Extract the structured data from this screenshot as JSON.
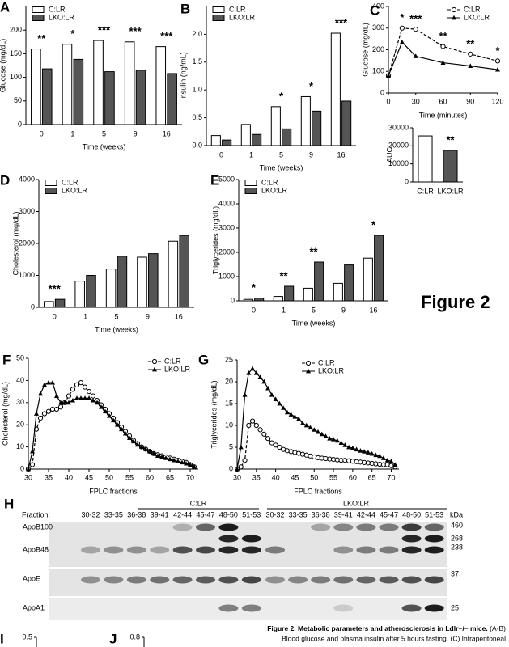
{
  "chart_data": [
    {
      "panel": "A",
      "type": "bar",
      "ylabel": "Glucose (mg/dL)",
      "xlabel": "Time (weeks)",
      "categories": [
        "0",
        "1",
        "5",
        "9",
        "16"
      ],
      "series": [
        {
          "name": "C:LR",
          "color": "#ffffff",
          "values": [
            160,
            170,
            178,
            175,
            165
          ]
        },
        {
          "name": "LKO:LR",
          "color": "#555555",
          "values": [
            118,
            138,
            112,
            115,
            108
          ]
        }
      ],
      "significance": [
        "**",
        "*",
        "***",
        "***",
        "***"
      ],
      "ylim": [
        0,
        250
      ],
      "yticks": [
        0,
        50,
        100,
        150,
        200
      ],
      "legend": "upper left"
    },
    {
      "panel": "B",
      "type": "bar",
      "ylabel": "Insulin (ng/mL)",
      "xlabel": "Time (weeks)",
      "categories": [
        "0",
        "1",
        "5",
        "9",
        "16"
      ],
      "series": [
        {
          "name": "C:LR",
          "color": "#ffffff",
          "values": [
            0.18,
            0.38,
            0.7,
            0.88,
            2.02
          ]
        },
        {
          "name": "LKO:LR",
          "color": "#555555",
          "values": [
            0.1,
            0.2,
            0.3,
            0.62,
            0.8
          ]
        }
      ],
      "significance": [
        null,
        null,
        "*",
        "*",
        "***"
      ],
      "ylim": [
        0,
        2.5
      ],
      "yticks": [
        {
          "value": 0,
          "label": "0.0"
        },
        0.5,
        {
          "value": 1,
          "label": "1.0"
        },
        1.5,
        {
          "value": 2,
          "label": "2.0"
        }
      ],
      "legend": "upper left"
    },
    {
      "panel": "C",
      "type": "line",
      "ylabel": "Glucose (mg/dL)",
      "xlabel": "Time (minutes)",
      "x": [
        0,
        15,
        30,
        60,
        90,
        120
      ],
      "series": [
        {
          "name": "C:LR",
          "color": "#000000",
          "dashed": true,
          "marker": "circle",
          "values": [
            80,
            300,
            295,
            215,
            180,
            148
          ]
        },
        {
          "name": "LKO:LR",
          "color": "#000000",
          "dashed": false,
          "marker": "triangle",
          "values": [
            80,
            235,
            170,
            140,
            125,
            108
          ]
        }
      ],
      "significance": [
        null,
        "*",
        "***",
        "**",
        "**",
        "*"
      ],
      "xlim": [
        0,
        120
      ],
      "xticks": [
        0,
        30,
        60,
        90,
        120
      ],
      "ylim": [
        0,
        400
      ],
      "yticks": [
        0,
        100,
        200,
        300,
        400
      ],
      "legend": "upper right"
    },
    {
      "type": "bar",
      "ylabel": "AUC",
      "categories": [
        "C:LR",
        "LKO:LR"
      ],
      "values": [
        25500,
        17500
      ],
      "colors": [
        "#ffffff",
        "#555555"
      ],
      "significance": [
        null,
        "**"
      ],
      "ylim": [
        0,
        30000
      ],
      "yticks": [
        0,
        10000,
        20000,
        30000
      ]
    },
    {
      "panel": "D",
      "type": "bar",
      "ylabel": "Cholesterol (mg/dL)",
      "xlabel": "Time (weeks)",
      "categories": [
        "0",
        "1",
        "5",
        "9",
        "16"
      ],
      "series": [
        {
          "name": "C:LR",
          "color": "#ffffff",
          "values": [
            180,
            820,
            1200,
            1570,
            2070
          ]
        },
        {
          "name": "LKO:LR",
          "color": "#555555",
          "values": [
            250,
            1000,
            1600,
            1680,
            2250
          ]
        }
      ],
      "significance": [
        "***",
        null,
        null,
        null,
        null
      ],
      "ylim": [
        0,
        4000
      ],
      "yticks": [
        0,
        1000,
        2000,
        3000,
        4000
      ],
      "legend": "upper left"
    },
    {
      "panel": "E",
      "type": "bar",
      "ylabel": "Triglycerides (mg/dL)",
      "xlabel": "Time (weeks)",
      "categories": [
        "0",
        "1",
        "5",
        "9",
        "16"
      ],
      "series": [
        {
          "name": "C:LR",
          "color": "#ffffff",
          "values": [
            60,
            180,
            520,
            720,
            1760
          ]
        },
        {
          "name": "LKO:LR",
          "color": "#555555",
          "values": [
            110,
            600,
            1600,
            1480,
            2700
          ]
        }
      ],
      "significance": [
        "*",
        "**",
        "**",
        null,
        "*"
      ],
      "ylim": [
        0,
        5000
      ],
      "yticks": [
        0,
        1000,
        2000,
        3000,
        4000,
        5000
      ],
      "legend": "upper left"
    },
    {
      "panel": "F",
      "type": "line",
      "ylabel": "Cholesterol (mg/dL)",
      "xlabel": "FPLC fractions",
      "x": [
        30,
        31,
        32,
        33,
        34,
        35,
        36,
        37,
        38,
        39,
        40,
        41,
        42,
        43,
        44,
        45,
        46,
        47,
        48,
        49,
        50,
        51,
        52,
        53,
        54,
        55,
        56,
        57,
        58,
        59,
        60,
        61,
        62,
        63,
        64,
        65,
        66,
        67,
        68,
        69,
        70,
        71
      ],
      "series": [
        {
          "name": "C:LR",
          "color": "#000000",
          "dashed": true,
          "marker": "circle",
          "values": [
            0,
            2,
            18,
            23,
            25,
            26,
            27,
            27,
            28,
            30,
            33,
            36,
            38,
            39,
            37,
            35,
            33,
            31,
            29,
            27,
            25,
            23,
            21,
            19,
            17,
            15,
            13,
            11.5,
            10,
            9,
            8,
            7,
            6.5,
            6,
            5.5,
            5,
            4.5,
            4,
            3.5,
            3,
            2,
            1
          ]
        },
        {
          "name": "LKO:LR",
          "color": "#000000",
          "dashed": false,
          "marker": "triangle",
          "values": [
            0,
            8,
            25,
            34,
            38,
            39,
            39,
            33,
            30,
            30,
            30,
            31,
            32,
            32,
            32,
            32,
            31,
            30,
            28,
            26,
            24,
            22,
            20,
            18,
            16,
            14,
            12.5,
            11,
            10,
            9,
            8,
            7,
            6,
            5.5,
            5,
            4.5,
            4,
            3.5,
            3,
            2.5,
            2,
            1
          ]
        }
      ],
      "xlim": [
        30,
        72
      ],
      "xticks": [
        30,
        35,
        40,
        45,
        50,
        55,
        60,
        65,
        70
      ],
      "ylim": [
        0,
        50
      ],
      "yticks": [
        0,
        10,
        20,
        30,
        40,
        50
      ],
      "legend": "upper right"
    },
    {
      "panel": "G",
      "type": "line",
      "ylabel": "Triglycerides (mg/dL)",
      "xlabel": "FPLC fractions",
      "x": [
        30,
        31,
        32,
        33,
        34,
        35,
        36,
        37,
        38,
        39,
        40,
        41,
        42,
        43,
        44,
        45,
        46,
        47,
        48,
        49,
        50,
        51,
        52,
        53,
        54,
        55,
        56,
        57,
        58,
        59,
        60,
        61,
        62,
        63,
        64,
        65,
        66,
        67,
        68,
        69,
        70,
        71
      ],
      "series": [
        {
          "name": "C:LR",
          "color": "#000000",
          "dashed": true,
          "marker": "circle",
          "values": [
            0,
            0.5,
            2,
            10,
            11,
            10,
            9,
            8,
            7,
            6,
            5.5,
            5,
            4.5,
            4.2,
            4,
            3.8,
            3.6,
            3.4,
            3.2,
            3,
            2.8,
            2.6,
            2.5,
            2.4,
            2.3,
            2.2,
            2.1,
            2,
            2,
            1.9,
            1.8,
            1.7,
            1.6,
            1.5,
            1.4,
            1.3,
            1.2,
            1.1,
            1,
            1,
            0.8,
            0.5
          ]
        },
        {
          "name": "LKO:LR",
          "color": "#000000",
          "dashed": false,
          "marker": "triangle",
          "values": [
            0,
            5,
            17,
            22,
            23,
            22,
            21,
            20,
            18.5,
            17,
            16,
            15,
            14,
            13,
            12.5,
            12,
            11.5,
            10.5,
            10,
            9.5,
            9,
            8.5,
            8,
            7.5,
            7,
            6.8,
            6.5,
            6,
            5.5,
            5,
            4.8,
            4.5,
            4.2,
            4,
            3.8,
            3.5,
            3.2,
            3,
            2.5,
            2,
            1.8,
            1
          ]
        }
      ],
      "xlim": [
        30,
        72
      ],
      "xticks": [
        30,
        35,
        40,
        45,
        50,
        55,
        60,
        65,
        70
      ],
      "ylim": [
        0,
        25
      ],
      "yticks": [
        0,
        5,
        10,
        15,
        20,
        25
      ],
      "legend": "upper center"
    },
    {
      "panel": "I",
      "type": "bar",
      "ylim": [
        0,
        0.5
      ],
      "yticks": [
        0.5
      ]
    },
    {
      "panel": "J",
      "type": "bar",
      "ylim": [
        0,
        0.8
      ],
      "yticks": [
        0.8
      ]
    }
  ],
  "figure_label": "Figure 2",
  "blot": {
    "panel": "H",
    "fraction_header": "Fraction:",
    "kda_header": "kDa",
    "groups": [
      {
        "label": "C:LR",
        "fractions": [
          "30-32",
          "33-35",
          "36-38",
          "39-41",
          "42-44",
          "45-47",
          "48-50",
          "51-53"
        ]
      },
      {
        "label": "LKO:LR",
        "fractions": [
          "30-32",
          "33-35",
          "36-38",
          "39-41",
          "42-44",
          "45-47",
          "48-50",
          "51-53"
        ]
      }
    ],
    "rows": [
      "ApoB100",
      "ApoB48",
      "ApoE",
      "ApoA1"
    ],
    "markers": [
      "460",
      "268",
      "238",
      "37",
      "25"
    ]
  },
  "caption": {
    "title": "Figure 2. Metabolic parameters and atherosclerosis in Ldlr−/− mice.",
    "lines": [
      "(A-B)",
      "Blood glucose and plasma insulin after 5 hours fasting. (C) Intraperitoneal"
    ]
  }
}
